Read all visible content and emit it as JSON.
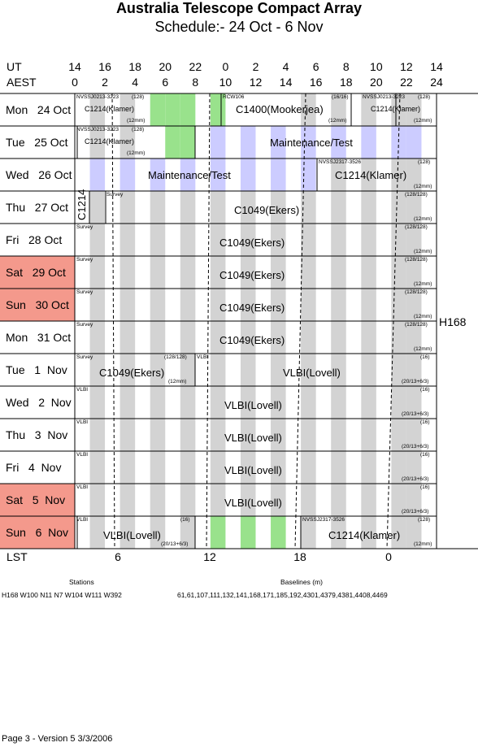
{
  "title": "Australia Telescope Compact Array",
  "subtitle": "Schedule:- 24 Oct - 6  Nov",
  "ut_label": "UT",
  "aest_label": "AEST",
  "lst_label": "LST",
  "ut_ticks": [
    "14",
    "16",
    "18",
    "20",
    "22",
    "0",
    "2",
    "4",
    "6",
    "8",
    "10",
    "12",
    "14"
  ],
  "aest_ticks": [
    "0",
    "2",
    "4",
    "6",
    "8",
    "10",
    "12",
    "14",
    "16",
    "18",
    "20",
    "22",
    "24"
  ],
  "lst_ticks": [
    "6",
    "12",
    "18",
    "0"
  ],
  "config_label": "H168",
  "days": [
    {
      "name": "Mon",
      "date": "24 Oct",
      "weekend": false
    },
    {
      "name": "Tue",
      "date": "25 Oct",
      "weekend": false
    },
    {
      "name": "Wed",
      "date": "26 Oct",
      "weekend": false
    },
    {
      "name": "Thu",
      "date": "27 Oct",
      "weekend": false
    },
    {
      "name": "Fri",
      "date": "28 Oct",
      "weekend": false
    },
    {
      "name": "Sat",
      "date": "29 Oct",
      "weekend": true
    },
    {
      "name": "Sun",
      "date": "30 Oct",
      "weekend": true
    },
    {
      "name": "Mon",
      "date": "31 Oct",
      "weekend": false
    },
    {
      "name": "Tue",
      "date": "1  Nov",
      "weekend": false
    },
    {
      "name": "Wed",
      "date": "2  Nov",
      "weekend": false
    },
    {
      "name": "Thu",
      "date": "3  Nov",
      "weekend": false
    },
    {
      "name": "Fri",
      "date": "4  Nov",
      "weekend": false
    },
    {
      "name": "Sat",
      "date": "5  Nov",
      "weekend": true
    },
    {
      "name": "Sun",
      "date": "6  Nov",
      "weekend": true
    }
  ],
  "programs": {
    "c1214_klamer": "C1214(Klamer)",
    "c1400": "C1400(Mookerjea)",
    "maintenance": "Maintenance/Test",
    "c1049": "C1049(Ekers)",
    "vlbi_lovell": "VLBI(Lovell)",
    "c1214_vertical": "C1214",
    "nvss_0213": "NVSSJ0213-3223",
    "nvss_2317": "NVSSJ2317-3526",
    "rcw106": "RCW106",
    "survey": "Survey",
    "vlbi": "VLBI",
    "bw_128": "(128)",
    "bw_16_16": "(16/16)",
    "bw_128_128": "(128/128)",
    "bw_16": "(16)",
    "rcv_12mm": "(12mm)",
    "rcv_20": "(20/13+6/3)"
  },
  "footer": {
    "stations_title": "Stations",
    "stations": "H168   W100  N11  N7  W104  W111  W392",
    "baselines_title": "Baselines (m)",
    "baselines": "61,61,107,111,132,141,168,171,185,192,4301,4379,4381,4408,4469",
    "page": "Page 3 - Version 5  3/3/2006"
  },
  "colors": {
    "weekend": "#f4998c",
    "grey_band": "#d3d3d3",
    "blue_band": "#ccccff",
    "green_band": "#99e28c"
  }
}
